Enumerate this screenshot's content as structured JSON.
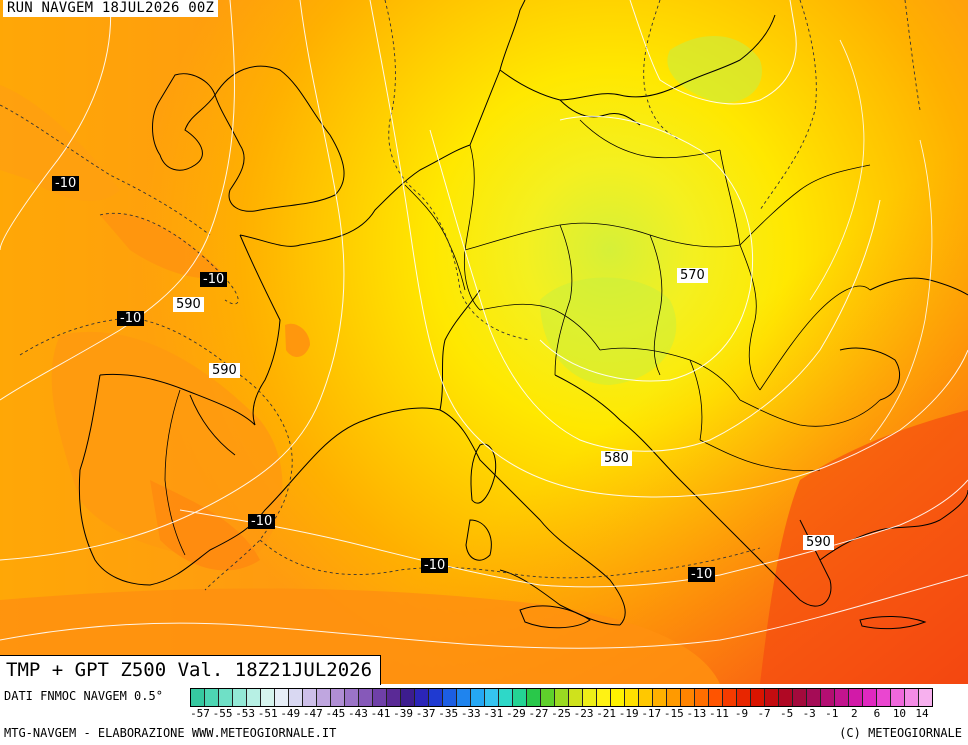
{
  "header": {
    "run_label": "RUN NAVGEM 18JUL2026 00Z"
  },
  "title": {
    "text": "TMP + GPT Z500 Val. 18Z21JUL2026"
  },
  "labels": {
    "temperature": [
      "-10",
      "-10",
      "-10",
      "-10",
      "-10",
      "-10"
    ],
    "geopotential": [
      "590",
      "590",
      "570",
      "580",
      "590"
    ]
  },
  "legend": {
    "source": "DATI FNMOC NAVGEM 0.5°",
    "ticks": [
      "-57",
      "-55",
      "-53",
      "-51",
      "-49",
      "-47",
      "-45",
      "-43",
      "-41",
      "-39",
      "-37",
      "-35",
      "-33",
      "-31",
      "-29",
      "-27",
      "-25",
      "-23",
      "-21",
      "-19",
      "-17",
      "-15",
      "-13",
      "-11",
      "-9",
      "-7",
      "-5",
      "-3",
      "-1",
      "2",
      "6",
      "10",
      "14"
    ],
    "colors": [
      "#36c9a0",
      "#4dd6b3",
      "#6fe0c6",
      "#93e9d6",
      "#b7f0e4",
      "#d6f4ee",
      "#e7eef8",
      "#d9d8f2",
      "#cdbfe9",
      "#bfa6df",
      "#b08ed4",
      "#9b74c7",
      "#8659b9",
      "#6f40a8",
      "#5a2a96",
      "#3d1d8e",
      "#2b25b8",
      "#1f3ad1",
      "#1c5ee3",
      "#1f84ee",
      "#25a8f4",
      "#35c4f0",
      "#2ed8c8",
      "#24d494",
      "#29c84a",
      "#5fd12b",
      "#9ada22",
      "#cfe21c",
      "#eeee18",
      "#fff214",
      "#fff200",
      "#ffe000",
      "#ffc800",
      "#ffb000",
      "#ff9a00",
      "#ff8400",
      "#ff6e00",
      "#ff5400",
      "#f53b00",
      "#e82600",
      "#d91400",
      "#c40c10",
      "#b00824",
      "#a30a3c",
      "#a50c56",
      "#b30e72",
      "#c2148e",
      "#d21aa8",
      "#e028c0",
      "#ea46d0",
      "#f068dc",
      "#f48ce6",
      "#f7b0ee"
    ]
  },
  "footer": {
    "left": "MTG-NAVGEM - ELABORAZIONE WWW.METEOGIORNALE.IT",
    "right": "(C) METEOGIORNALE"
  },
  "colors": {
    "warm_core": "#fa5a10",
    "orange": "#ff9a10",
    "yellow": "#ffe000",
    "cold_core": "#d8f030",
    "coast": "#000000",
    "isohypse": "#ffffff"
  }
}
